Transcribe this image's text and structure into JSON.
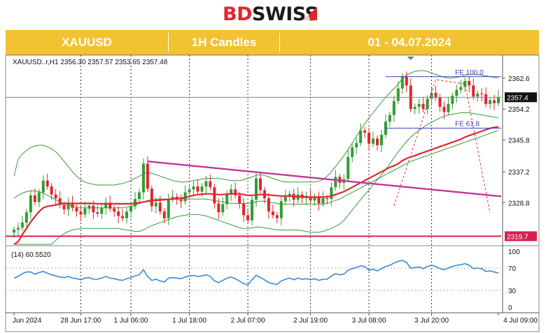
{
  "brand": {
    "prefix": "BD",
    "suffix": "SWISS"
  },
  "header": {
    "symbol": "XAUUSD",
    "timeframe": "1H Candles",
    "dates": "01 - 04.07.2024"
  },
  "chart_info": "XAUUSD..r,H1  2356.30 2357.57 2353.65 2357.48",
  "rsi_label": "(14) 60.5520",
  "colors": {
    "bull": "#2f9e2f",
    "bear": "#e0262f",
    "ma": "#e0262f",
    "bollinger": "#3a9a3a",
    "trendline": "#c2369a",
    "support": "#d6204f",
    "fibo": "#3b3bc4",
    "rsi": "#3a8ad8",
    "brand_yellow": "#f2c232"
  },
  "chart_data": {
    "type": "candlestick",
    "symbol": "XAUUSD",
    "timeframe": "H1",
    "ylim": [
      2317.5,
      2367.5
    ],
    "price_ticks": [
      "2362.6",
      "2354.2",
      "2345.8",
      "2337.2",
      "2328.8"
    ],
    "x_labels": [
      "Jun 2024",
      "28 Jun 17:00",
      "1 Jul 06:00",
      "1 Jul 18:00",
      "2 Jul 07:00",
      "2 Jul 19:00",
      "3 Jul 08:00",
      "3 Jul 20:00",
      "4 Jul 09:00"
    ],
    "last_price": "2357.4",
    "support_level": "2319.7",
    "support_value": 2319.7,
    "fibo": [
      {
        "label": "FE 100.0",
        "value": 2363.0
      },
      {
        "label": "FE 61.8",
        "value": 2349.0
      }
    ],
    "trendline": [
      {
        "x": 0,
        "y": 2340.0
      },
      {
        "x": 1,
        "y": 2330.5
      }
    ],
    "close": [
      2321.5,
      2322.0,
      2323.4,
      2326.2,
      2330.8,
      2329.0,
      2331.6,
      2334.8,
      2333.2,
      2331.0,
      2330.0,
      2328.2,
      2327.0,
      2328.8,
      2327.4,
      2326.4,
      2325.6,
      2327.2,
      2328.0,
      2326.2,
      2325.8,
      2327.4,
      2328.8,
      2327.2,
      2326.4,
      2325.2,
      2324.6,
      2326.4,
      2327.8,
      2329.8,
      2331.6,
      2339.4,
      2332.6,
      2327.8,
      2328.8,
      2326.4,
      2324.6,
      2329.8,
      2330.4,
      2329.6,
      2329.2,
      2331.6,
      2332.4,
      2333.2,
      2331.8,
      2333.2,
      2334.6,
      2333.0,
      2328.6,
      2326.2,
      2328.4,
      2331.2,
      2332.4,
      2330.8,
      2328.6,
      2325.4,
      2324.0,
      2329.6,
      2335.4,
      2332.2,
      2330.0,
      2326.4,
      2325.4,
      2324.6,
      2329.2,
      2330.4,
      2331.2,
      2329.6,
      2331.0,
      2330.0,
      2330.4,
      2329.4,
      2330.4,
      2328.6,
      2330.0,
      2329.8,
      2333.0,
      2335.8,
      2334.2,
      2335.2,
      2341.2,
      2343.8,
      2345.0,
      2348.4,
      2347.8,
      2344.8,
      2346.2,
      2344.4,
      2347.2,
      2350.8,
      2352.6,
      2356.4,
      2359.8,
      2363.0,
      2360.6,
      2354.2,
      2354.8,
      2355.6,
      2354.2,
      2357.0,
      2358.6,
      2357.4,
      2354.8,
      2353.4,
      2355.6,
      2357.8,
      2359.4,
      2360.2,
      2361.8,
      2360.6,
      2357.6,
      2358.4,
      2358.2,
      2355.6,
      2356.6,
      2355.8,
      2357.48
    ],
    "moving_average": [
      2315.0,
      2318.2,
      2320.2,
      2321.8,
      2323.6,
      2325.0,
      2326.4,
      2327.4,
      2327.8,
      2328.0,
      2328.2,
      2328.4,
      2328.6,
      2328.6,
      2328.6,
      2328.6,
      2328.6,
      2328.6,
      2328.6,
      2328.6,
      2328.5,
      2328.5,
      2328.5,
      2328.5,
      2328.5,
      2328.5,
      2328.5,
      2328.5,
      2328.5,
      2328.6,
      2328.8,
      2329.0,
      2329.2,
      2329.3,
      2329.4,
      2329.5,
      2329.6,
      2329.7,
      2329.8,
      2329.9,
      2330.0,
      2330.2,
      2330.5,
      2330.8,
      2331.0,
      2331.1,
      2331.2,
      2331.2,
      2331.1,
      2331.0,
      2331.0,
      2331.1,
      2331.2,
      2331.2,
      2331.2,
      2331.0,
      2330.8,
      2330.8,
      2330.9,
      2331.0,
      2331.0,
      2330.9,
      2330.8,
      2330.7,
      2330.6,
      2330.6,
      2330.6,
      2330.5,
      2330.5,
      2330.4,
      2330.4,
      2330.3,
      2330.3,
      2330.3,
      2330.3,
      2330.4,
      2330.6,
      2331.0,
      2331.4,
      2331.8,
      2332.4,
      2333.0,
      2333.6,
      2334.2,
      2334.8,
      2335.4,
      2336.0,
      2336.6,
      2337.2,
      2337.8,
      2338.4,
      2338.8,
      2339.4,
      2340.2,
      2340.8,
      2341.2,
      2341.6,
      2342.0,
      2342.4,
      2342.8,
      2343.2,
      2343.6,
      2344.0,
      2344.4,
      2344.8,
      2345.2,
      2345.6,
      2346.0,
      2346.6,
      2347.0,
      2347.4,
      2347.8,
      2348.2,
      2348.6,
      2349.0,
      2349.2,
      2349.4
    ],
    "bollinger_upper": [
      2336.0,
      2340.6,
      2342.0,
      2343.0,
      2343.8,
      2344.2,
      2344.4,
      2344.4,
      2344.0,
      2343.4,
      2342.6,
      2341.4,
      2340.0,
      2338.6,
      2337.2,
      2336.0,
      2335.0,
      2334.4,
      2334.0,
      2333.8,
      2333.6,
      2333.6,
      2333.6,
      2333.6,
      2333.6,
      2333.8,
      2334.0,
      2334.4,
      2334.8,
      2335.4,
      2336.0,
      2336.6,
      2337.0,
      2336.8,
      2336.4,
      2336.0,
      2335.6,
      2335.2,
      2334.8,
      2334.6,
      2334.4,
      2334.4,
      2334.6,
      2334.8,
      2335.0,
      2335.2,
      2335.4,
      2335.4,
      2335.4,
      2335.4,
      2335.2,
      2335.0,
      2334.8,
      2334.8,
      2334.8,
      2335.0,
      2335.4,
      2335.8,
      2336.2,
      2336.4,
      2336.2,
      2335.8,
      2335.4,
      2335.0,
      2334.6,
      2334.4,
      2334.4,
      2334.4,
      2334.4,
      2334.4,
      2334.4,
      2334.4,
      2334.4,
      2334.6,
      2335.0,
      2336.0,
      2337.2,
      2338.6,
      2340.0,
      2341.6,
      2343.2,
      2345.0,
      2346.8,
      2348.6,
      2350.2,
      2351.8,
      2353.2,
      2354.6,
      2356.0,
      2357.4,
      2358.6,
      2359.8,
      2361.0,
      2362.4,
      2363.4,
      2364.0,
      2364.4,
      2364.6,
      2364.6,
      2364.4,
      2364.0,
      2363.6,
      2363.2,
      2362.8,
      2362.6,
      2362.6,
      2362.8,
      2363.0,
      2363.4,
      2363.6,
      2363.6,
      2363.6,
      2363.4,
      2363.2,
      2363.0,
      2362.8,
      2362.6
    ],
    "bollinger_lower": [
      2300.0,
      2302.0,
      2304.0,
      2306.2,
      2308.4,
      2310.6,
      2312.6,
      2314.4,
      2316.0,
      2317.4,
      2318.6,
      2319.6,
      2320.4,
      2321.0,
      2321.4,
      2321.6,
      2321.8,
      2321.8,
      2321.8,
      2321.8,
      2321.8,
      2321.8,
      2321.8,
      2321.8,
      2321.8,
      2321.8,
      2321.6,
      2321.4,
      2321.2,
      2321.0,
      2321.0,
      2321.4,
      2322.0,
      2322.6,
      2323.0,
      2323.4,
      2323.8,
      2324.2,
      2324.6,
      2325.0,
      2325.2,
      2325.4,
      2325.6,
      2325.6,
      2325.6,
      2325.4,
      2325.2,
      2324.8,
      2324.4,
      2324.0,
      2323.6,
      2323.2,
      2322.8,
      2322.4,
      2322.0,
      2321.8,
      2321.8,
      2322.0,
      2322.2,
      2322.2,
      2322.0,
      2321.8,
      2321.6,
      2321.4,
      2321.4,
      2321.4,
      2321.4,
      2321.4,
      2321.4,
      2321.2,
      2321.0,
      2320.8,
      2320.8,
      2320.8,
      2321.0,
      2321.4,
      2321.8,
      2322.4,
      2323.0,
      2324.0,
      2325.4,
      2326.8,
      2328.2,
      2329.6,
      2331.0,
      2332.2,
      2333.6,
      2335.0,
      2336.4,
      2337.8,
      2339.4,
      2341.0,
      2342.6,
      2344.0,
      2345.4,
      2346.6,
      2347.6,
      2348.4,
      2349.2,
      2350.0,
      2350.6,
      2351.2,
      2351.8,
      2352.2,
      2352.6,
      2352.8,
      2353.0,
      2353.2,
      2353.2,
      2353.2,
      2353.0,
      2352.8,
      2352.6,
      2352.4,
      2352.2,
      2352.0,
      2351.8
    ],
    "bollinger_mid": [
      2330.0,
      2330.8,
      2331.4,
      2331.8,
      2332.0,
      2332.0,
      2331.8,
      2331.4,
      2330.8,
      2330.2,
      2329.6,
      2329.0,
      2328.6,
      2328.2,
      2327.8,
      2327.6,
      2327.4,
      2327.4,
      2327.4,
      2327.4,
      2327.4,
      2327.4,
      2327.4,
      2327.4,
      2327.4,
      2327.4,
      2327.4,
      2327.6,
      2327.8,
      2328.2,
      2328.6,
      2329.0,
      2329.4,
      2329.6,
      2329.8,
      2329.8,
      2329.8,
      2329.8,
      2329.8,
      2329.8,
      2329.8,
      2329.8,
      2329.8,
      2329.8,
      2329.8,
      2329.8,
      2329.8,
      2329.6,
      2329.4,
      2329.2,
      2329.0,
      2328.8,
      2328.6,
      2328.6,
      2328.6,
      2328.6,
      2328.6,
      2328.8,
      2329.0,
      2329.2,
      2329.2,
      2329.0,
      2328.8,
      2328.6,
      2328.4,
      2328.4,
      2328.4,
      2328.4,
      2328.4,
      2328.4,
      2328.4,
      2328.4,
      2328.4,
      2328.4,
      2328.4,
      2328.6,
      2329.0,
      2329.4,
      2329.8,
      2330.4,
      2331.0,
      2331.6,
      2332.2,
      2332.8,
      2333.4,
      2334.0,
      2334.6,
      2335.2,
      2335.8,
      2336.4,
      2337.0,
      2337.6,
      2338.2,
      2338.8,
      2339.4,
      2340.0,
      2340.4,
      2340.8,
      2341.2,
      2341.6,
      2342.0,
      2342.4,
      2342.8,
      2343.2,
      2343.6,
      2344.0,
      2344.4,
      2344.8,
      2345.2,
      2345.6,
      2346.0,
      2346.4,
      2346.8,
      2347.2,
      2347.6,
      2348.0,
      2348.4
    ],
    "rsi": {
      "label": "(14) 60.5520",
      "ticks": [
        "100",
        "70",
        "30",
        "0"
      ],
      "ylim": [
        0,
        100
      ],
      "value": 60.552,
      "values": [
        52,
        55,
        60,
        63,
        63,
        59,
        62,
        64,
        61,
        58,
        56,
        54,
        53,
        55,
        52,
        51,
        49,
        52,
        53,
        50,
        50,
        52,
        55,
        52,
        51,
        49,
        48,
        51,
        53,
        56,
        58,
        67,
        55,
        48,
        50,
        47,
        45,
        52,
        53,
        52,
        51,
        54,
        56,
        57,
        55,
        56,
        58,
        55,
        47,
        44,
        48,
        52,
        54,
        51,
        47,
        42,
        40,
        49,
        57,
        53,
        49,
        44,
        42,
        41,
        47,
        50,
        52,
        49,
        52,
        50,
        51,
        49,
        51,
        48,
        50,
        50,
        56,
        60,
        58,
        59,
        66,
        69,
        71,
        74,
        73,
        66,
        68,
        65,
        69,
        73,
        75,
        79,
        82,
        84,
        80,
        70,
        71,
        72,
        69,
        73,
        75,
        73,
        69,
        67,
        70,
        73,
        75,
        76,
        78,
        75,
        69,
        70,
        69,
        64,
        65,
        63,
        61
      ]
    },
    "projection": [
      {
        "i": 91,
        "v": 2328.0
      },
      {
        "i": 101,
        "v": 2362.2
      },
      {
        "i": 108,
        "v": 2361.0
      },
      {
        "i": 114,
        "v": 2326.0
      }
    ]
  }
}
